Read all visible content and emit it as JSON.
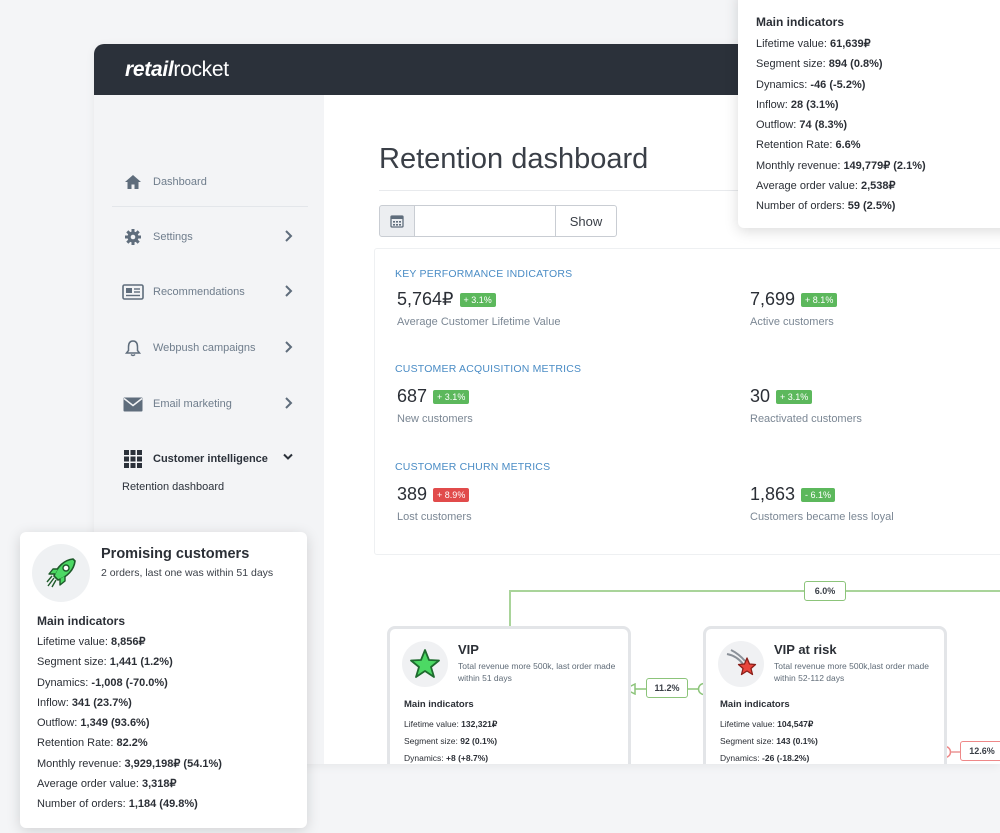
{
  "app": {
    "logo_bold": "retail",
    "logo_light": "rocket"
  },
  "sidebar": {
    "items": [
      {
        "label": "Dashboard",
        "icon": "home-icon"
      },
      {
        "label": "Settings",
        "icon": "gear-icon"
      },
      {
        "label": "Recommendations",
        "icon": "card-icon"
      },
      {
        "label": "Webpush campaigns",
        "icon": "bell-icon"
      },
      {
        "label": "Email marketing",
        "icon": "envelope-icon"
      },
      {
        "label": "Customer intelligence",
        "icon": "grid-icon"
      }
    ],
    "sub_item": "Retention dashboard"
  },
  "main": {
    "title": "Retention dashboard",
    "date_value": "",
    "show_label": "Show"
  },
  "kpi": {
    "sections": [
      {
        "heading": "KEY PERFORMANCE INDICATORS",
        "metrics": [
          {
            "value": "5,764₽",
            "badge": "+ 3.1%",
            "label": "Average Customer Lifetime Value",
            "trend": "up"
          },
          {
            "value": "7,699",
            "badge": "+ 8.1%",
            "label": "Active customers",
            "trend": "up"
          }
        ]
      },
      {
        "heading": "CUSTOMER ACQUISITION METRICS",
        "metrics": [
          {
            "value": "687",
            "badge": "+ 3.1%",
            "label": "New customers",
            "trend": "up"
          },
          {
            "value": "30",
            "badge": "+ 3.1%",
            "label": "Reactivated customers",
            "trend": "up"
          }
        ]
      },
      {
        "heading": "CUSTOMER CHURN METRICS",
        "metrics": [
          {
            "value": "389",
            "badge": "+ 8.9%",
            "label": "Lost customers",
            "trend": "down"
          },
          {
            "value": "1,863",
            "badge": "- 6.1%",
            "label": "Customers became less loyal",
            "trend": "up"
          }
        ]
      }
    ]
  },
  "flow": {
    "top_badge": "6.0%",
    "mid_badge": "11.2%",
    "right_badge": "12.6%"
  },
  "segments": {
    "vip": {
      "name": "VIP",
      "desc": "Total revenue more 500k, last order made within 51 days",
      "main_indicators": "Main indicators",
      "rows": [
        {
          "label": "Lifetime value: ",
          "value": "132,321₽"
        },
        {
          "label": "Segment size: ",
          "value": "92 (0.1%)"
        },
        {
          "label": "Dynamics: ",
          "value": "+8 (+8.7%)"
        }
      ]
    },
    "vip_at_risk": {
      "name": "VIP at risk",
      "desc": "Total revenue more 500k,last order made within 52-112 days",
      "main_indicators": "Main indicators",
      "rows": [
        {
          "label": "Lifetime value: ",
          "value": "104,547₽"
        },
        {
          "label": "Segment size: ",
          "value": "143 (0.1%)"
        },
        {
          "label": "Dynamics: ",
          "value": "-26 (-18.2%)"
        }
      ]
    }
  },
  "popup_top": {
    "main_indicators": "Main indicators",
    "rows": [
      {
        "label": "Lifetime value: ",
        "value": "61,639₽"
      },
      {
        "label": "Segment size: ",
        "value": "894 (0.8%)"
      },
      {
        "label": "Dynamics: ",
        "value": "-46 (-5.2%)"
      },
      {
        "label": "Inflow: ",
        "value": "28 (3.1%)"
      },
      {
        "label": "Outflow: ",
        "value": "74 (8.3%)"
      },
      {
        "label": "Retention Rate: ",
        "value": "6.6%"
      },
      {
        "label": "Monthly revenue: ",
        "value": "149,779₽ (2.1%)"
      },
      {
        "label": "Average order value: ",
        "value": "2,538₽"
      },
      {
        "label": "Number of orders: ",
        "value": "59 (2.5%)"
      }
    ]
  },
  "popup_left": {
    "name": "Promising customers",
    "desc": "2 orders, last one was within 51 days",
    "main_indicators": "Main indicators",
    "rows": [
      {
        "label": "Lifetime value: ",
        "value": "8,856₽"
      },
      {
        "label": "Segment size: ",
        "value": "1,441 (1.2%)"
      },
      {
        "label": "Dynamics: ",
        "value": "-1,008 (-70.0%)"
      },
      {
        "label": "Inflow: ",
        "value": "341 (23.7%)"
      },
      {
        "label": "Outflow: ",
        "value": "1,349 (93.6%)"
      },
      {
        "label": "Retention Rate: ",
        "value": "82.2%"
      },
      {
        "label": "Monthly revenue: ",
        "value": "3,929,198₽ (54.1%)"
      },
      {
        "label": "Average order value: ",
        "value": "3,318₽"
      },
      {
        "label": "Number of orders: ",
        "value": "1,184 (49.8%)"
      }
    ]
  }
}
